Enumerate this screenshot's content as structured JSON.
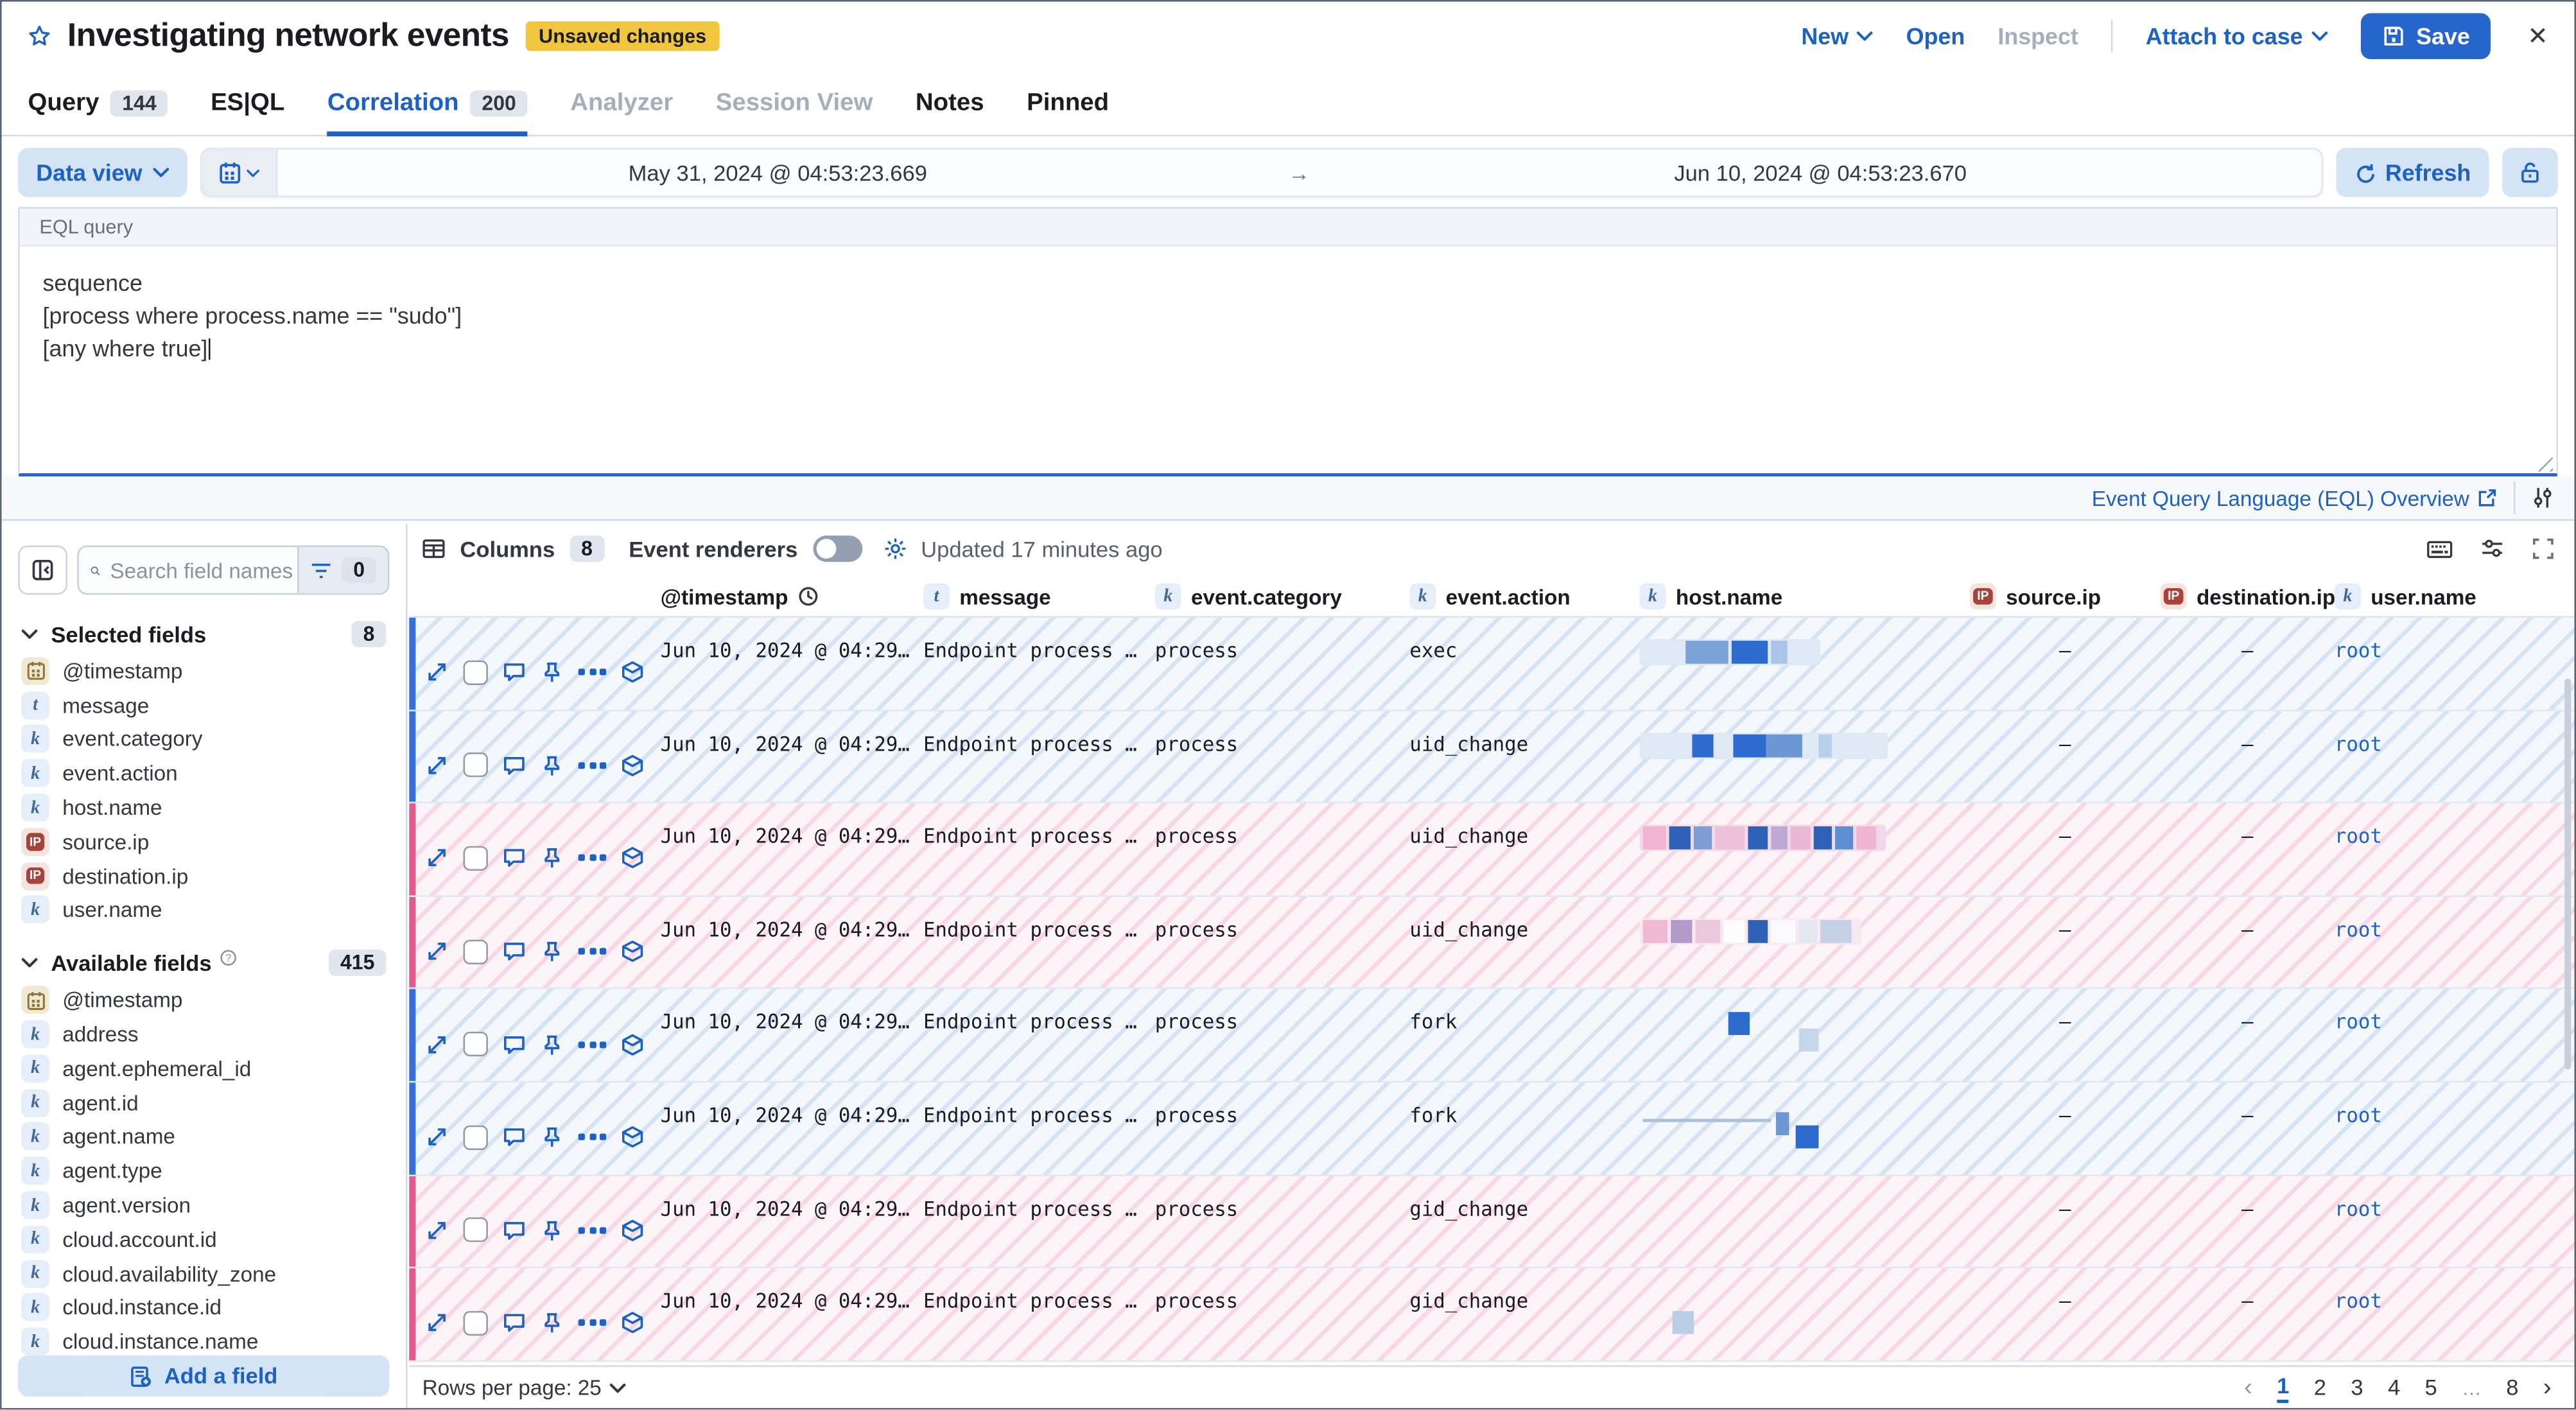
{
  "chips": {
    "keyword": "k",
    "text": "t",
    "ip": "IP"
  },
  "header": {
    "title": "Investigating network events",
    "unsaved_badge": "Unsaved changes",
    "new_label": "New",
    "open_label": "Open",
    "inspect_label": "Inspect",
    "attach_label": "Attach to case",
    "save_label": "Save"
  },
  "tabs": {
    "query": {
      "label": "Query",
      "badge": "144"
    },
    "esql": {
      "label": "ES|QL"
    },
    "correlation": {
      "label": "Correlation",
      "badge": "200"
    },
    "analyzer": {
      "label": "Analyzer"
    },
    "session": {
      "label": "Session View"
    },
    "notes": {
      "label": "Notes"
    },
    "pinned": {
      "label": "Pinned"
    }
  },
  "querybar": {
    "data_view": "Data view",
    "date_start": "May 31, 2024 @ 04:53:23.669",
    "date_end": "Jun 10, 2024 @ 04:53:23.670",
    "arrow": "→",
    "refresh": "Refresh"
  },
  "eql": {
    "label": "EQL query",
    "line1": "sequence",
    "line2": "[process where process.name == \"sudo\"]",
    "line3": "[any where true]",
    "overview_link": "Event Query Language (EQL) Overview"
  },
  "sidebar": {
    "search_placeholder": "Search field names",
    "filter_count": "0",
    "selected_title": "Selected fields",
    "selected_count": "8",
    "selected_items": [
      {
        "n": "@timestamp"
      },
      {
        "n": "message"
      },
      {
        "n": "event.category"
      },
      {
        "n": "event.action"
      },
      {
        "n": "host.name"
      },
      {
        "n": "source.ip"
      },
      {
        "n": "destination.ip"
      },
      {
        "n": "user.name"
      }
    ],
    "available_title": "Available fields",
    "available_count": "415",
    "available_items": [
      {
        "n": "@timestamp"
      },
      {
        "n": "address"
      },
      {
        "n": "agent.ephemeral_id"
      },
      {
        "n": "agent.id"
      },
      {
        "n": "agent.name"
      },
      {
        "n": "agent.type"
      },
      {
        "n": "agent.version"
      },
      {
        "n": "cloud.account.id"
      },
      {
        "n": "cloud.availability_zone"
      },
      {
        "n": "cloud.instance.id"
      },
      {
        "n": "cloud.instance.name"
      }
    ],
    "add_field": "Add a field"
  },
  "toolbar": {
    "columns_label": "Columns",
    "columns_count": "8",
    "event_renderers_label": "Event renderers",
    "updated": "Updated 17 minutes ago"
  },
  "columns": {
    "c0": "@timestamp",
    "c1": "message",
    "c2": "event.category",
    "c3": "event.action",
    "c4": "host.name",
    "c5": "source.ip",
    "c6": "destination.ip",
    "c7": "user.name"
  },
  "rows": [
    {
      "timestamp": "Jun 10, 2024 @ 04:29…",
      "message": "Endpoint process …",
      "category": "process",
      "action": "exec",
      "source": "–",
      "dest": "–",
      "user": "root",
      "host_strip": "#dfe9f5",
      "host_blocks": [
        {
          "c": "#7aa3d8",
          "w": 26,
          "ml": 26
        },
        {
          "c": "#2d6cce",
          "w": 22,
          "ml": 2
        },
        {
          "c": "#a9c4e6",
          "w": 10,
          "ml": 2
        },
        {
          "c": "#dfe9f5",
          "w": 14
        }
      ]
    },
    {
      "timestamp": "Jun 10, 2024 @ 04:29…",
      "message": "Endpoint process …",
      "category": "process",
      "action": "uid_change",
      "source": "–",
      "dest": "–",
      "user": "root",
      "host_strip": "#dfe9f5",
      "host_blocks": [
        {
          "c": "#dfe9f5",
          "w": 30
        },
        {
          "c": "#2d6cce",
          "w": 13
        },
        {
          "c": "#dfe9f5",
          "w": 12
        },
        {
          "c": "#2d6cce",
          "w": 20
        },
        {
          "c": "#6d97d4",
          "w": 22
        },
        {
          "c": "#b9cee9",
          "w": 8,
          "ml": 10
        },
        {
          "c": "#dfe9f5",
          "w": 28
        }
      ]
    },
    {
      "timestamp": "Jun 10, 2024 @ 04:29…",
      "message": "Endpoint process …",
      "category": "process",
      "action": "uid_change",
      "source": "–",
      "dest": "–",
      "user": "root",
      "host_strip": "#f3d9e7",
      "host_blocks": [
        {
          "c": "#efb5d2",
          "w": 14
        },
        {
          "c": "#2d62b8",
          "w": 13,
          "ml": 2
        },
        {
          "c": "#7f9bd4",
          "w": 11,
          "ml": 2
        },
        {
          "c": "#eec1da",
          "w": 18,
          "ml": 2
        },
        {
          "c": "#2d62b8",
          "w": 12,
          "ml": 2
        },
        {
          "c": "#c0a8d4",
          "w": 10,
          "ml": 2
        },
        {
          "c": "#eab8d4",
          "w": 12,
          "ml": 2
        },
        {
          "c": "#2d62b8",
          "w": 11,
          "ml": 2
        },
        {
          "c": "#5d8fd0",
          "w": 11,
          "ml": 2
        },
        {
          "c": "#efb5d2",
          "w": 12,
          "ml": 2
        }
      ]
    },
    {
      "timestamp": "Jun 10, 2024 @ 04:29…",
      "message": "Endpoint process …",
      "category": "process",
      "action": "uid_change",
      "source": "–",
      "dest": "–",
      "user": "root",
      "host_strip": "#f7e8f1",
      "host_blocks": [
        {
          "c": "#efb9d4",
          "w": 15
        },
        {
          "c": "#b29aca",
          "w": 13,
          "ml": 2
        },
        {
          "c": "#ecc8dd",
          "w": 15,
          "ml": 2
        },
        {
          "c": "#fdfdfe",
          "w": 13,
          "ml": 2
        },
        {
          "c": "#2d62b8",
          "w": 12,
          "ml": 2
        },
        {
          "c": "#fbfbfd",
          "w": 15,
          "ml": 2
        },
        {
          "c": "#e2e7f1",
          "w": 11,
          "ml": 2
        },
        {
          "c": "#c4d1e7",
          "w": 19,
          "ml": 2
        }
      ]
    },
    {
      "timestamp": "Jun 10, 2024 @ 04:29…",
      "message": "Endpoint process …",
      "category": "process",
      "action": "fork",
      "source": "–",
      "dest": "–",
      "user": "root",
      "host_strip": "",
      "host_blocks": [
        {
          "c": "#2d6cce",
          "w": 13,
          "ml": 52
        },
        {
          "c": "#c6d7ec",
          "w": 12,
          "ml": 30,
          "mt": 10
        }
      ]
    },
    {
      "timestamp": "Jun 10, 2024 @ 04:29…",
      "message": "Endpoint process …",
      "category": "process",
      "action": "fork",
      "source": "–",
      "dest": "–",
      "user": "root",
      "host_strip": "",
      "host_blocks": [
        {
          "c": "#aebfd8",
          "w": 78,
          "h": 2,
          "mt": 4
        },
        {
          "c": "#6d97d4",
          "w": 8,
          "ml": 3
        },
        {
          "c": "#2d6cce",
          "w": 14,
          "ml": 4,
          "mt": 8
        }
      ]
    },
    {
      "timestamp": "Jun 10, 2024 @ 04:29…",
      "message": "Endpoint process …",
      "category": "process",
      "action": "gid_change",
      "source": "–",
      "dest": "–",
      "user": "root",
      "host_strip": "",
      "host_blocks": []
    },
    {
      "timestamp": "Jun 10, 2024 @ 04:29…",
      "message": "Endpoint process …",
      "category": "process",
      "action": "gid_change",
      "source": "–",
      "dest": "–",
      "user": "root",
      "host_strip": "",
      "host_blocks": [
        {
          "c": "#b9cfe8",
          "w": 13,
          "ml": 18,
          "mt": 12
        }
      ]
    }
  ],
  "footer": {
    "rows_per_page": "Rows per page: 25",
    "pages": [
      "1",
      "2",
      "3",
      "4",
      "5",
      "…",
      "8"
    ]
  }
}
